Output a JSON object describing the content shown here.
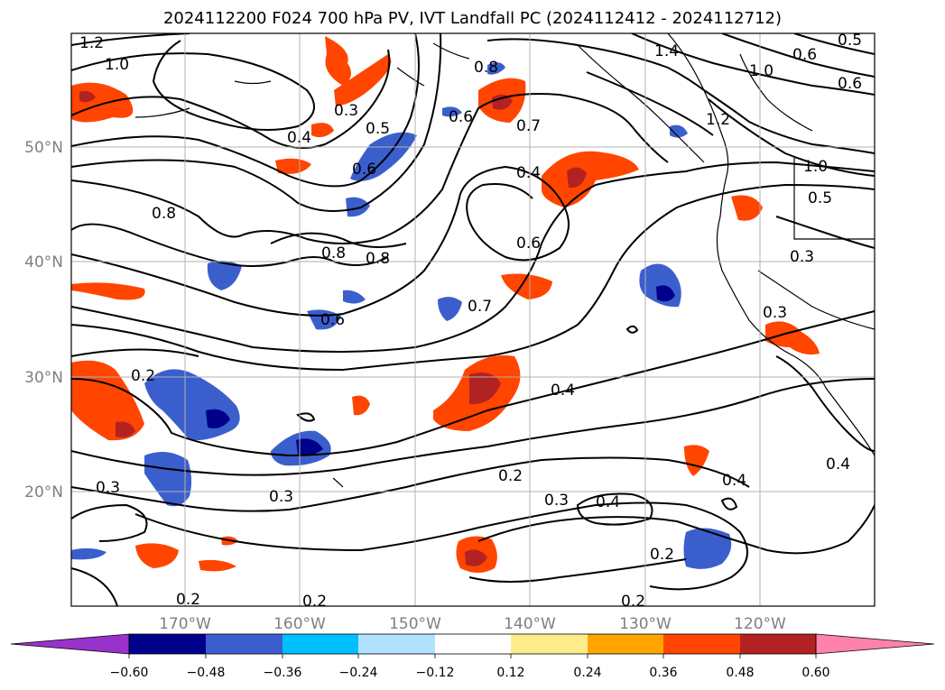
{
  "title": "2024112200 F024 700 hPa PV, IVT Landfall PC (2024112412 - 2024112712)",
  "axes": {
    "lat_labels": [
      "50°N",
      "40°N",
      "30°N",
      "20°N"
    ],
    "lon_labels": [
      "170°W",
      "160°W",
      "150°W",
      "140°W",
      "130°W",
      "120°W"
    ]
  },
  "contour_labels": [
    "1.2",
    "1.0",
    "0.3",
    "0.4",
    "0.5",
    "0.6",
    "0.8",
    "0.6",
    "0.7",
    "0.4",
    "0.6",
    "1.4",
    "0.6",
    "0.5",
    "0.6",
    "1.0",
    "1.2",
    "1.0",
    "0.5",
    "0.3",
    "0.8",
    "0.8",
    "0.8",
    "0.6",
    "0.7",
    "0.3",
    "0.2",
    "0.4",
    "0.2",
    "0.3",
    "0.4",
    "0.4",
    "0.2",
    "0.4",
    "0.3",
    "0.3",
    "0.2",
    "0.2",
    "0.2"
  ],
  "colorbar": {
    "colors": [
      "#9932cc",
      "#00008b",
      "#3a5fcd",
      "#00bfff",
      "#b0e2ff",
      "#ffffff",
      "#ffec8b",
      "#ffa500",
      "#ff4500",
      "#b22222",
      "#ff82ab"
    ],
    "ticks": [
      "−0.60",
      "−0.48",
      "−0.36",
      "−0.24",
      "−0.12",
      "0.12",
      "0.24",
      "0.36",
      "0.48",
      "0.60"
    ]
  }
}
